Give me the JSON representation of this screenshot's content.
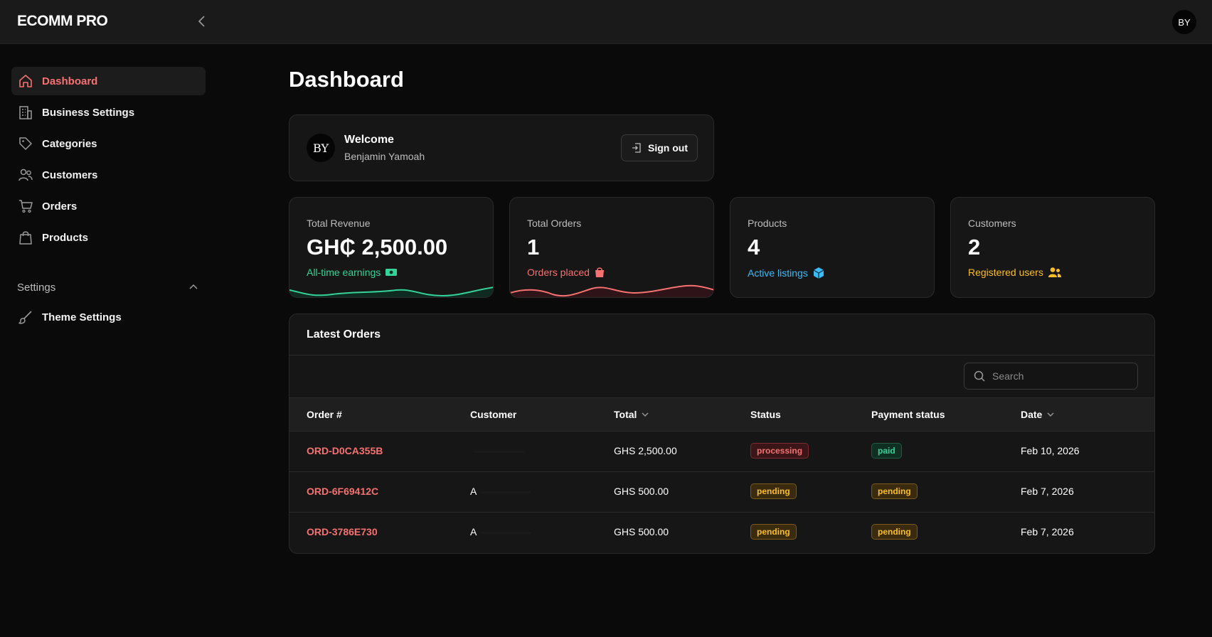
{
  "brand": "ECOMM PRO",
  "user": {
    "initials": "BY",
    "name": "Benjamin Yamoah"
  },
  "sidebar": {
    "items": [
      {
        "label": "Dashboard",
        "icon": "home-icon"
      },
      {
        "label": "Business Settings",
        "icon": "building-icon"
      },
      {
        "label": "Categories",
        "icon": "tag-icon"
      },
      {
        "label": "Customers",
        "icon": "users-icon"
      },
      {
        "label": "Orders",
        "icon": "cart-icon"
      },
      {
        "label": "Products",
        "icon": "bag-icon"
      }
    ],
    "settings_label": "Settings",
    "settings_items": [
      {
        "label": "Theme Settings",
        "icon": "brush-icon"
      }
    ]
  },
  "page": {
    "title": "Dashboard"
  },
  "welcome": {
    "title": "Welcome",
    "signout_label": "Sign out"
  },
  "stats": [
    {
      "label": "Total Revenue",
      "value": "GH₵ 2,500.00",
      "sub": "All-time earnings",
      "color": "#34d399"
    },
    {
      "label": "Total Orders",
      "value": "1",
      "sub": "Orders placed",
      "color": "#f87171"
    },
    {
      "label": "Products",
      "value": "4",
      "sub": "Active listings",
      "color": "#38bdf8"
    },
    {
      "label": "Customers",
      "value": "2",
      "sub": "Registered users",
      "color": "#fbbf24"
    }
  ],
  "orders": {
    "title": "Latest Orders",
    "search_placeholder": "Search",
    "columns": [
      "Order #",
      "Customer",
      "Total",
      "Status",
      "Payment status",
      "Date"
    ],
    "rows": [
      {
        "id": "ORD-D0CA355B",
        "customer": "",
        "total": "GHS 2,500.00",
        "status": "processing",
        "payment": "paid",
        "date": "Feb 10, 2026"
      },
      {
        "id": "ORD-6F69412C",
        "customer": "A",
        "total": "GHS 500.00",
        "status": "pending",
        "payment": "pending",
        "date": "Feb 7, 2026"
      },
      {
        "id": "ORD-3786E730",
        "customer": "A",
        "total": "GHS 500.00",
        "status": "pending",
        "payment": "pending",
        "date": "Feb 7, 2026"
      }
    ]
  }
}
